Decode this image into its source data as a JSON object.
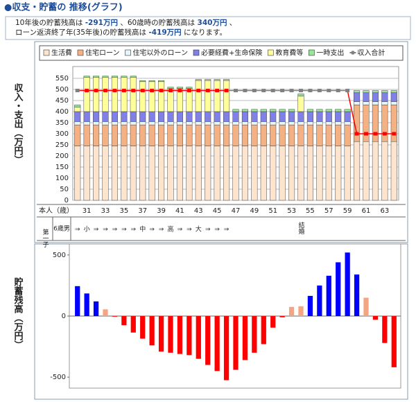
{
  "header": {
    "title": "●収支・貯蓄の 推移(グラフ)"
  },
  "info": {
    "lines": [
      [
        {
          "text": "10年後の貯蓄残高は "
        },
        {
          "value": "-291万円"
        },
        {
          "text": " 、60歳時の貯蓄残高は "
        },
        {
          "value": "340万円"
        },
        {
          "text": " 、"
        }
      ],
      [
        {
          "text": "ローン返済終了年(35年後)の貯蓄残高は "
        },
        {
          "value": "-419万円"
        },
        {
          "text": " になります。"
        }
      ]
    ]
  },
  "chart_data": [
    {
      "type": "stacked_bar",
      "y_label": "収入・支出（万円）",
      "row_label": "本人（歳）",
      "categories": [
        null,
        31,
        null,
        33,
        null,
        35,
        null,
        37,
        null,
        39,
        null,
        41,
        null,
        43,
        null,
        45,
        null,
        47,
        null,
        49,
        null,
        51,
        null,
        53,
        null,
        55,
        null,
        57,
        null,
        59,
        null,
        61,
        null,
        63,
        null
      ],
      "ylim": [
        0,
        550
      ],
      "yticks": [
        0,
        50,
        100,
        150,
        200,
        250,
        300,
        350,
        400,
        450,
        500,
        550
      ],
      "grid": true,
      "legend": "top",
      "series": [
        {
          "name": "生活費",
          "color": "#fde4cf",
          "values": [
            245,
            245,
            245,
            245,
            245,
            245,
            245,
            245,
            245,
            245,
            245,
            245,
            245,
            245,
            245,
            245,
            245,
            245,
            245,
            245,
            245,
            245,
            245,
            245,
            245,
            245,
            245,
            245,
            245,
            245,
            265,
            265,
            265,
            265,
            265
          ]
        },
        {
          "name": "住宅ローン",
          "color": "#f4b183",
          "values": [
            95,
            95,
            95,
            95,
            95,
            95,
            95,
            95,
            95,
            95,
            95,
            95,
            95,
            95,
            95,
            95,
            95,
            95,
            95,
            95,
            95,
            95,
            95,
            95,
            95,
            95,
            95,
            95,
            95,
            95,
            165,
            165,
            165,
            165,
            165
          ]
        },
        {
          "name": "住宅以外のローン",
          "color": "#e3f6f9",
          "values": [
            15,
            15,
            15,
            15,
            15,
            15,
            15,
            15,
            15,
            15,
            15,
            15,
            15,
            15,
            15,
            15,
            15,
            15,
            15,
            15,
            15,
            15,
            15,
            15,
            15,
            15,
            15,
            15,
            15,
            15,
            15,
            15,
            15,
            15,
            15
          ]
        },
        {
          "name": "必要経費+生命保険",
          "color": "#8080e6",
          "values": [
            45,
            45,
            45,
            45,
            45,
            45,
            45,
            45,
            45,
            45,
            45,
            45,
            45,
            45,
            45,
            45,
            45,
            45,
            45,
            45,
            45,
            45,
            45,
            45,
            45,
            45,
            45,
            45,
            45,
            45,
            40,
            40,
            40,
            40,
            40
          ]
        },
        {
          "name": "教育費等",
          "color": "#ffff99",
          "values": [
            20,
            155,
            155,
            155,
            155,
            155,
            155,
            135,
            135,
            135,
            105,
            105,
            105,
            140,
            140,
            140,
            140,
            0,
            0,
            0,
            0,
            0,
            0,
            0,
            70,
            0,
            0,
            0,
            0,
            0,
            0,
            0,
            0,
            0,
            0
          ]
        },
        {
          "name": "一時支出",
          "color": "#99e699",
          "values": [
            10,
            5,
            5,
            5,
            5,
            5,
            5,
            5,
            5,
            5,
            5,
            5,
            5,
            5,
            5,
            5,
            5,
            10,
            10,
            10,
            10,
            10,
            10,
            10,
            10,
            10,
            10,
            10,
            10,
            10,
            10,
            10,
            10,
            10,
            10
          ]
        },
        {
          "name": "収入合計",
          "type": "line",
          "color": "#808080",
          "values": [
            495,
            495,
            495,
            495,
            495,
            495,
            495,
            495,
            495,
            495,
            495,
            495,
            495,
            495,
            495,
            495,
            495,
            495,
            495,
            495,
            495,
            495,
            495,
            495,
            495,
            495,
            495,
            495,
            495,
            495,
            300,
            300,
            300,
            300,
            300
          ],
          "point_colors": [
            "#808080",
            "#ff0000",
            "#ff0000",
            "#ff0000",
            "#ff0000",
            "#ff0000",
            "#ff0000",
            "#ff0000",
            "#ff0000",
            "#ff0000",
            "#ff0000",
            "#ff0000",
            "#ff0000",
            "#ff0000",
            "#ff0000",
            "#ff0000",
            "#ff0000",
            "#808080",
            "#808080",
            "#808080",
            "#808080",
            "#808080",
            "#808080",
            "#808080",
            "#808080",
            "#808080",
            "#808080",
            "#808080",
            "#808080",
            "#808080",
            "#ff0000",
            "#ff0000",
            "#ff0000",
            "#ff0000",
            "#ff0000"
          ]
        }
      ]
    },
    {
      "type": "bar",
      "y_label": "貯蓄残高（万円）",
      "ylim": [
        -590,
        590
      ],
      "yticks": [
        -500,
        0,
        500
      ],
      "grid": false,
      "values": [
        245,
        185,
        120,
        55,
        -5,
        -75,
        -135,
        -185,
        -240,
        -291,
        -300,
        -310,
        -320,
        -350,
        -400,
        -450,
        -525,
        -440,
        -360,
        -300,
        -230,
        -95,
        -10,
        75,
        80,
        165,
        250,
        330,
        440,
        520,
        340,
        150,
        -30,
        -220,
        -419
      ],
      "colors": [
        "#0000ff",
        "#0000ff",
        "#0000ff",
        "#f4a582",
        "#ff0000",
        "#ff0000",
        "#ff0000",
        "#ff0000",
        "#ff0000",
        "#ff0000",
        "#ff0000",
        "#ff0000",
        "#ff0000",
        "#ff0000",
        "#ff0000",
        "#ff0000",
        "#ff0000",
        "#ff0000",
        "#ff0000",
        "#ff0000",
        "#ff0000",
        "#ff0000",
        "#ff0000",
        "#f4a582",
        "#f4a582",
        "#0000ff",
        "#0000ff",
        "#0000ff",
        "#0000ff",
        "#0000ff",
        "#0000ff",
        "#f4a582",
        "#ff0000",
        "#ff0000",
        "#ff0000"
      ]
    }
  ],
  "timeline": {
    "child_label": "第一子",
    "child_detail": "6歳男",
    "child_events": [
      "⇒",
      "小",
      "⇒",
      "⇒",
      "⇒",
      "⇒",
      "⇒",
      "中",
      "⇒",
      "⇒",
      "高",
      "⇒",
      "⇒",
      "大",
      "⇒",
      "⇒",
      "⇒",
      null,
      null,
      null,
      null,
      null,
      null,
      null,
      "結婚",
      null,
      null,
      null,
      null,
      null,
      null,
      null,
      null,
      null,
      null
    ]
  }
}
